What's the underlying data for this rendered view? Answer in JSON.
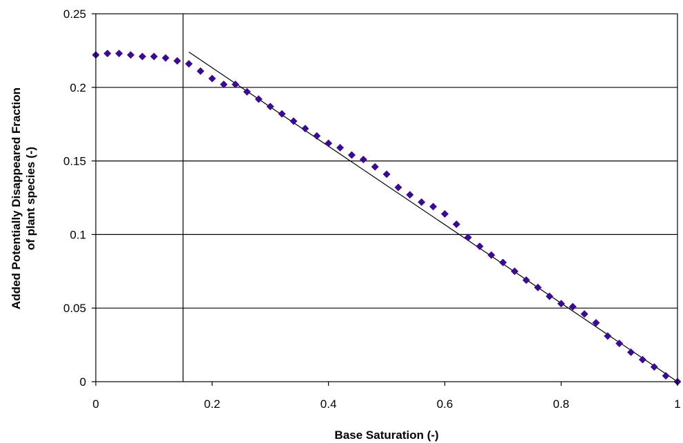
{
  "chart_data": {
    "type": "scatter",
    "title": "",
    "xlabel": "Base Saturation (-)",
    "ylabel_lines": [
      "Added Potentially Disappeared Fraction",
      "of plant species (-)"
    ],
    "xlim": [
      0,
      1
    ],
    "ylim": [
      0,
      0.25
    ],
    "x_ticks": [
      0,
      0.2,
      0.4,
      0.6,
      0.8,
      1
    ],
    "x_tick_labels": [
      "0",
      "0.2",
      "0.4",
      "0.6",
      "0.8",
      "1"
    ],
    "y_ticks": [
      0,
      0.05,
      0.1,
      0.15,
      0.2,
      0.25
    ],
    "y_tick_labels": [
      "0",
      "0.05",
      "0.1",
      "0.15",
      "0.2",
      "0.25"
    ],
    "grid": "horizontal",
    "legend": "none",
    "colors": {
      "marker": "#3b0a8f",
      "line": "#000000",
      "grid": "#000000"
    },
    "vertical_reference_x": 0.15,
    "fit_line": {
      "x": [
        0.16,
        1.0
      ],
      "y": [
        0.224,
        0.0
      ]
    },
    "series": [
      {
        "marker": "diamond",
        "x": [
          0,
          0.02,
          0.04,
          0.06,
          0.08,
          0.1,
          0.12,
          0.14,
          0.16,
          0.18,
          0.2,
          0.22,
          0.24,
          0.26,
          0.28,
          0.3,
          0.32,
          0.34,
          0.36,
          0.38,
          0.4,
          0.42,
          0.44,
          0.46,
          0.48,
          0.5,
          0.52,
          0.54,
          0.56,
          0.58,
          0.6,
          0.62,
          0.64,
          0.66,
          0.68,
          0.7,
          0.72,
          0.74,
          0.76,
          0.78,
          0.8,
          0.82,
          0.84,
          0.86,
          0.88,
          0.9,
          0.92,
          0.94,
          0.96,
          0.98,
          1.0
        ],
        "y": [
          0.222,
          0.223,
          0.223,
          0.222,
          0.221,
          0.221,
          0.22,
          0.218,
          0.216,
          0.211,
          0.206,
          0.202,
          0.202,
          0.197,
          0.192,
          0.187,
          0.182,
          0.177,
          0.172,
          0.167,
          0.162,
          0.159,
          0.154,
          0.151,
          0.146,
          0.141,
          0.132,
          0.127,
          0.122,
          0.119,
          0.114,
          0.107,
          0.098,
          0.092,
          0.086,
          0.081,
          0.075,
          0.069,
          0.064,
          0.058,
          0.053,
          0.051,
          0.046,
          0.04,
          0.031,
          0.026,
          0.02,
          0.015,
          0.01,
          0.004,
          0.0
        ]
      }
    ]
  }
}
